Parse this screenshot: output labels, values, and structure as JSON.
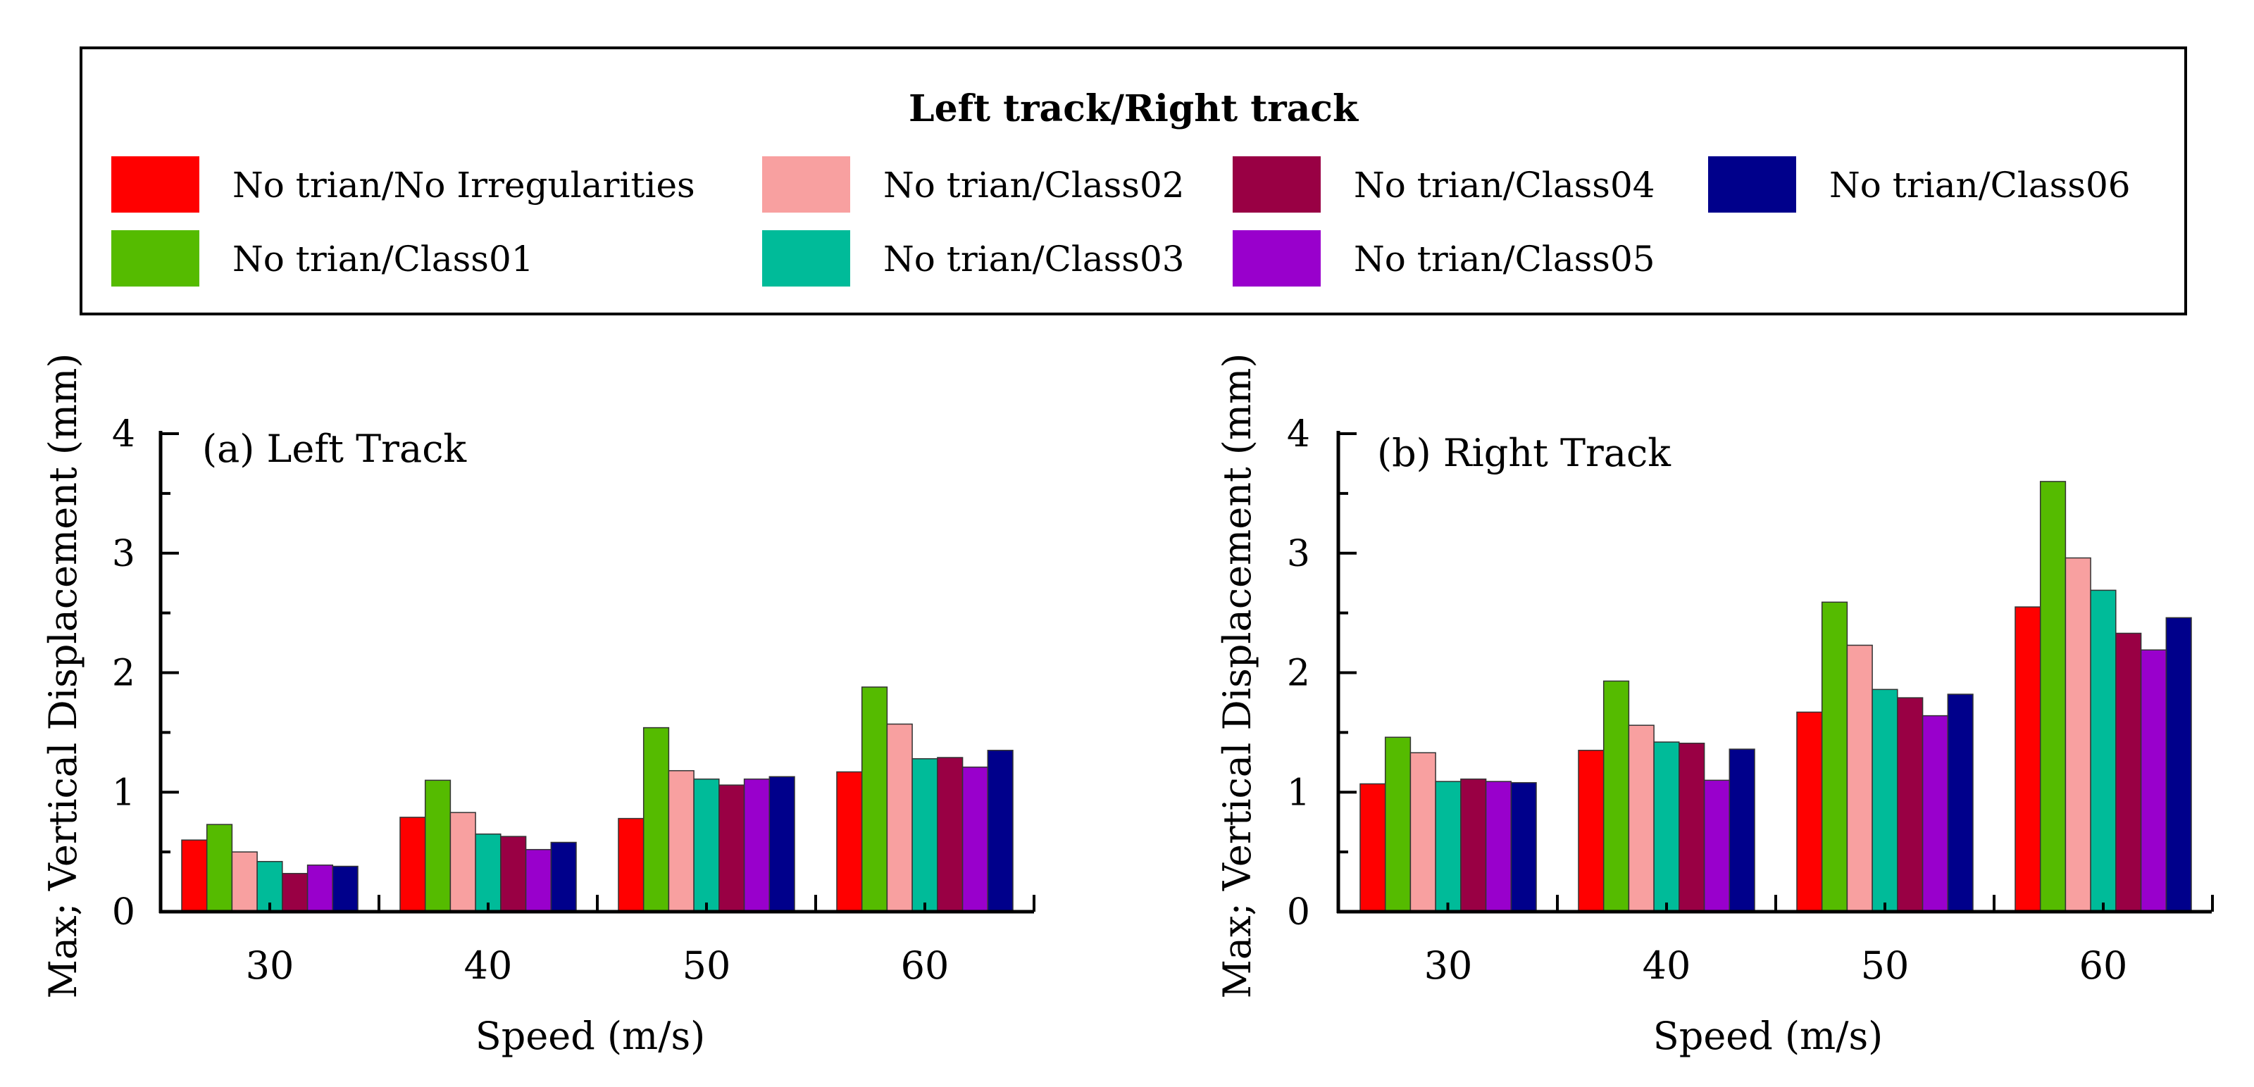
{
  "legend": {
    "title": "Left track/Right track",
    "entries": [
      {
        "label": "No trian/No Irregularities",
        "color": "#ff0000"
      },
      {
        "label": "No trian/Class01",
        "color": "#55bb00"
      },
      {
        "label": "No trian/Class02",
        "color": "#f8a0a0"
      },
      {
        "label": "No trian/Class03",
        "color": "#00bb99"
      },
      {
        "label": "No trian/Class04",
        "color": "#990044"
      },
      {
        "label": "No trian/Class05",
        "color": "#9900cc"
      },
      {
        "label": "No trian/Class06",
        "color": "#00008b"
      }
    ]
  },
  "chart_data": [
    {
      "type": "bar",
      "title": "(a) Left Track",
      "xlabel": "Speed (m/s)",
      "ylabel": "Max; Vertical Displacement (mm)",
      "ylim": [
        0,
        4
      ],
      "yticks": [
        "0",
        "1",
        "2",
        "3",
        "4"
      ],
      "categories": [
        "30",
        "40",
        "50",
        "60"
      ],
      "series": [
        {
          "name": "No trian/No Irregularities",
          "values": [
            0.6,
            0.79,
            0.78,
            1.17
          ]
        },
        {
          "name": "No trian/Class01",
          "values": [
            0.73,
            1.1,
            1.54,
            1.88
          ]
        },
        {
          "name": "No trian/Class02",
          "values": [
            0.5,
            0.83,
            1.18,
            1.57
          ]
        },
        {
          "name": "No trian/Class03",
          "values": [
            0.42,
            0.65,
            1.11,
            1.28
          ]
        },
        {
          "name": "No trian/Class04",
          "values": [
            0.32,
            0.63,
            1.06,
            1.29
          ]
        },
        {
          "name": "No trian/Class05",
          "values": [
            0.39,
            0.52,
            1.11,
            1.21
          ]
        },
        {
          "name": "No trian/Class06",
          "values": [
            0.38,
            0.58,
            1.13,
            1.35
          ]
        }
      ]
    },
    {
      "type": "bar",
      "title": "(b) Right Track",
      "xlabel": "Speed (m/s)",
      "ylabel": "Max; Vertical Displacement (mm)",
      "ylim": [
        0,
        4
      ],
      "yticks": [
        "0",
        "1",
        "2",
        "3",
        "4"
      ],
      "categories": [
        "30",
        "40",
        "50",
        "60"
      ],
      "series": [
        {
          "name": "No trian/No Irregularities",
          "values": [
            1.07,
            1.35,
            1.67,
            2.55
          ]
        },
        {
          "name": "No trian/Class01",
          "values": [
            1.46,
            1.93,
            2.59,
            3.6
          ]
        },
        {
          "name": "No trian/Class02",
          "values": [
            1.33,
            1.56,
            2.23,
            2.96
          ]
        },
        {
          "name": "No trian/Class03",
          "values": [
            1.09,
            1.42,
            1.86,
            2.69
          ]
        },
        {
          "name": "No trian/Class04",
          "values": [
            1.11,
            1.41,
            1.79,
            2.33
          ]
        },
        {
          "name": "No trian/Class05",
          "values": [
            1.09,
            1.1,
            1.64,
            2.19
          ]
        },
        {
          "name": "No trian/Class06",
          "values": [
            1.08,
            1.36,
            1.82,
            2.46
          ]
        }
      ]
    }
  ]
}
